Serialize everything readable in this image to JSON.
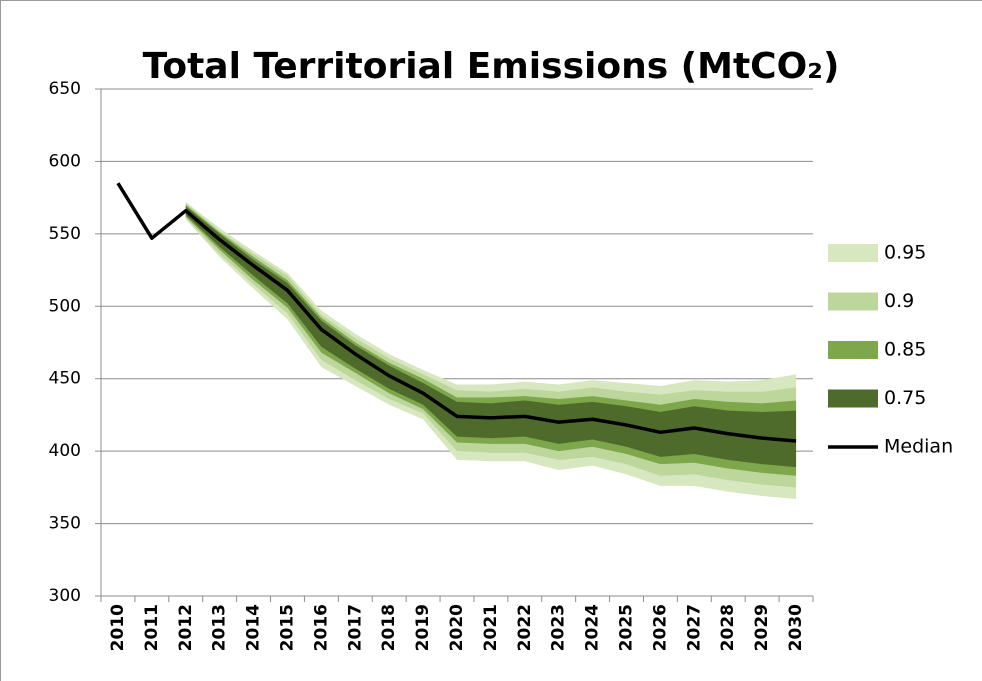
{
  "chart_data": {
    "type": "fan",
    "title": "Total Territorial Emissions (MtCO₂)",
    "categories": [
      "2010",
      "2011",
      "2012",
      "2013",
      "2014",
      "2015",
      "2016",
      "2017",
      "2018",
      "2019",
      "2020",
      "2021",
      "2022",
      "2023",
      "2024",
      "2025",
      "2026",
      "2027",
      "2028",
      "2029",
      "2030"
    ],
    "ylim": [
      300,
      650
    ],
    "yticks": [
      300,
      350,
      400,
      450,
      500,
      550,
      600,
      650
    ],
    "grid": true,
    "legend": "right",
    "bands": [
      {
        "name": "0.95",
        "color": "#d7e7c0",
        "upper": [
          null,
          null,
          572,
          554,
          538,
          523,
          497,
          481,
          467,
          456,
          446,
          446,
          448,
          446,
          449,
          447,
          445,
          449,
          448,
          449,
          453
        ],
        "lower": [
          null,
          null,
          560,
          534,
          512,
          491,
          458,
          445,
          432,
          422,
          394,
          393,
          393,
          387,
          390,
          384,
          376,
          376,
          372,
          369,
          367
        ]
      },
      {
        "name": "0.9",
        "color": "#bcd69b",
        "upper": [
          null,
          null,
          571,
          552,
          536,
          521,
          494,
          478,
          464,
          453,
          442,
          441,
          443,
          441,
          444,
          441,
          439,
          442,
          441,
          441,
          444
        ],
        "lower": [
          null,
          null,
          561,
          536,
          515,
          495,
          463,
          449,
          436,
          426,
          400,
          399,
          399,
          394,
          396,
          391,
          383,
          384,
          380,
          377,
          375
        ]
      },
      {
        "name": "0.85",
        "color": "#7ea64b",
        "upper": [
          null,
          null,
          570,
          551,
          534,
          518,
          492,
          475,
          461,
          450,
          437,
          437,
          438,
          436,
          438,
          435,
          432,
          436,
          434,
          433,
          435
        ],
        "lower": [
          null,
          null,
          562,
          539,
          518,
          499,
          468,
          454,
          440,
          429,
          406,
          405,
          405,
          400,
          403,
          398,
          391,
          392,
          388,
          385,
          383
        ]
      },
      {
        "name": "0.75",
        "color": "#4f6b2c",
        "upper": [
          null,
          null,
          569,
          550,
          532,
          516,
          490,
          473,
          459,
          447,
          434,
          433,
          435,
          432,
          434,
          431,
          427,
          431,
          428,
          427,
          428
        ],
        "lower": [
          null,
          null,
          563,
          541,
          521,
          502,
          472,
          457,
          443,
          432,
          410,
          409,
          410,
          405,
          408,
          403,
          396,
          398,
          394,
          391,
          389
        ]
      }
    ],
    "series": [
      {
        "name": "Median",
        "color": "#000000",
        "values": [
          585,
          547,
          566,
          546,
          528,
          511,
          484,
          467,
          452,
          440,
          424,
          423,
          424,
          420,
          422,
          418,
          413,
          416,
          412,
          409,
          407
        ]
      }
    ]
  }
}
